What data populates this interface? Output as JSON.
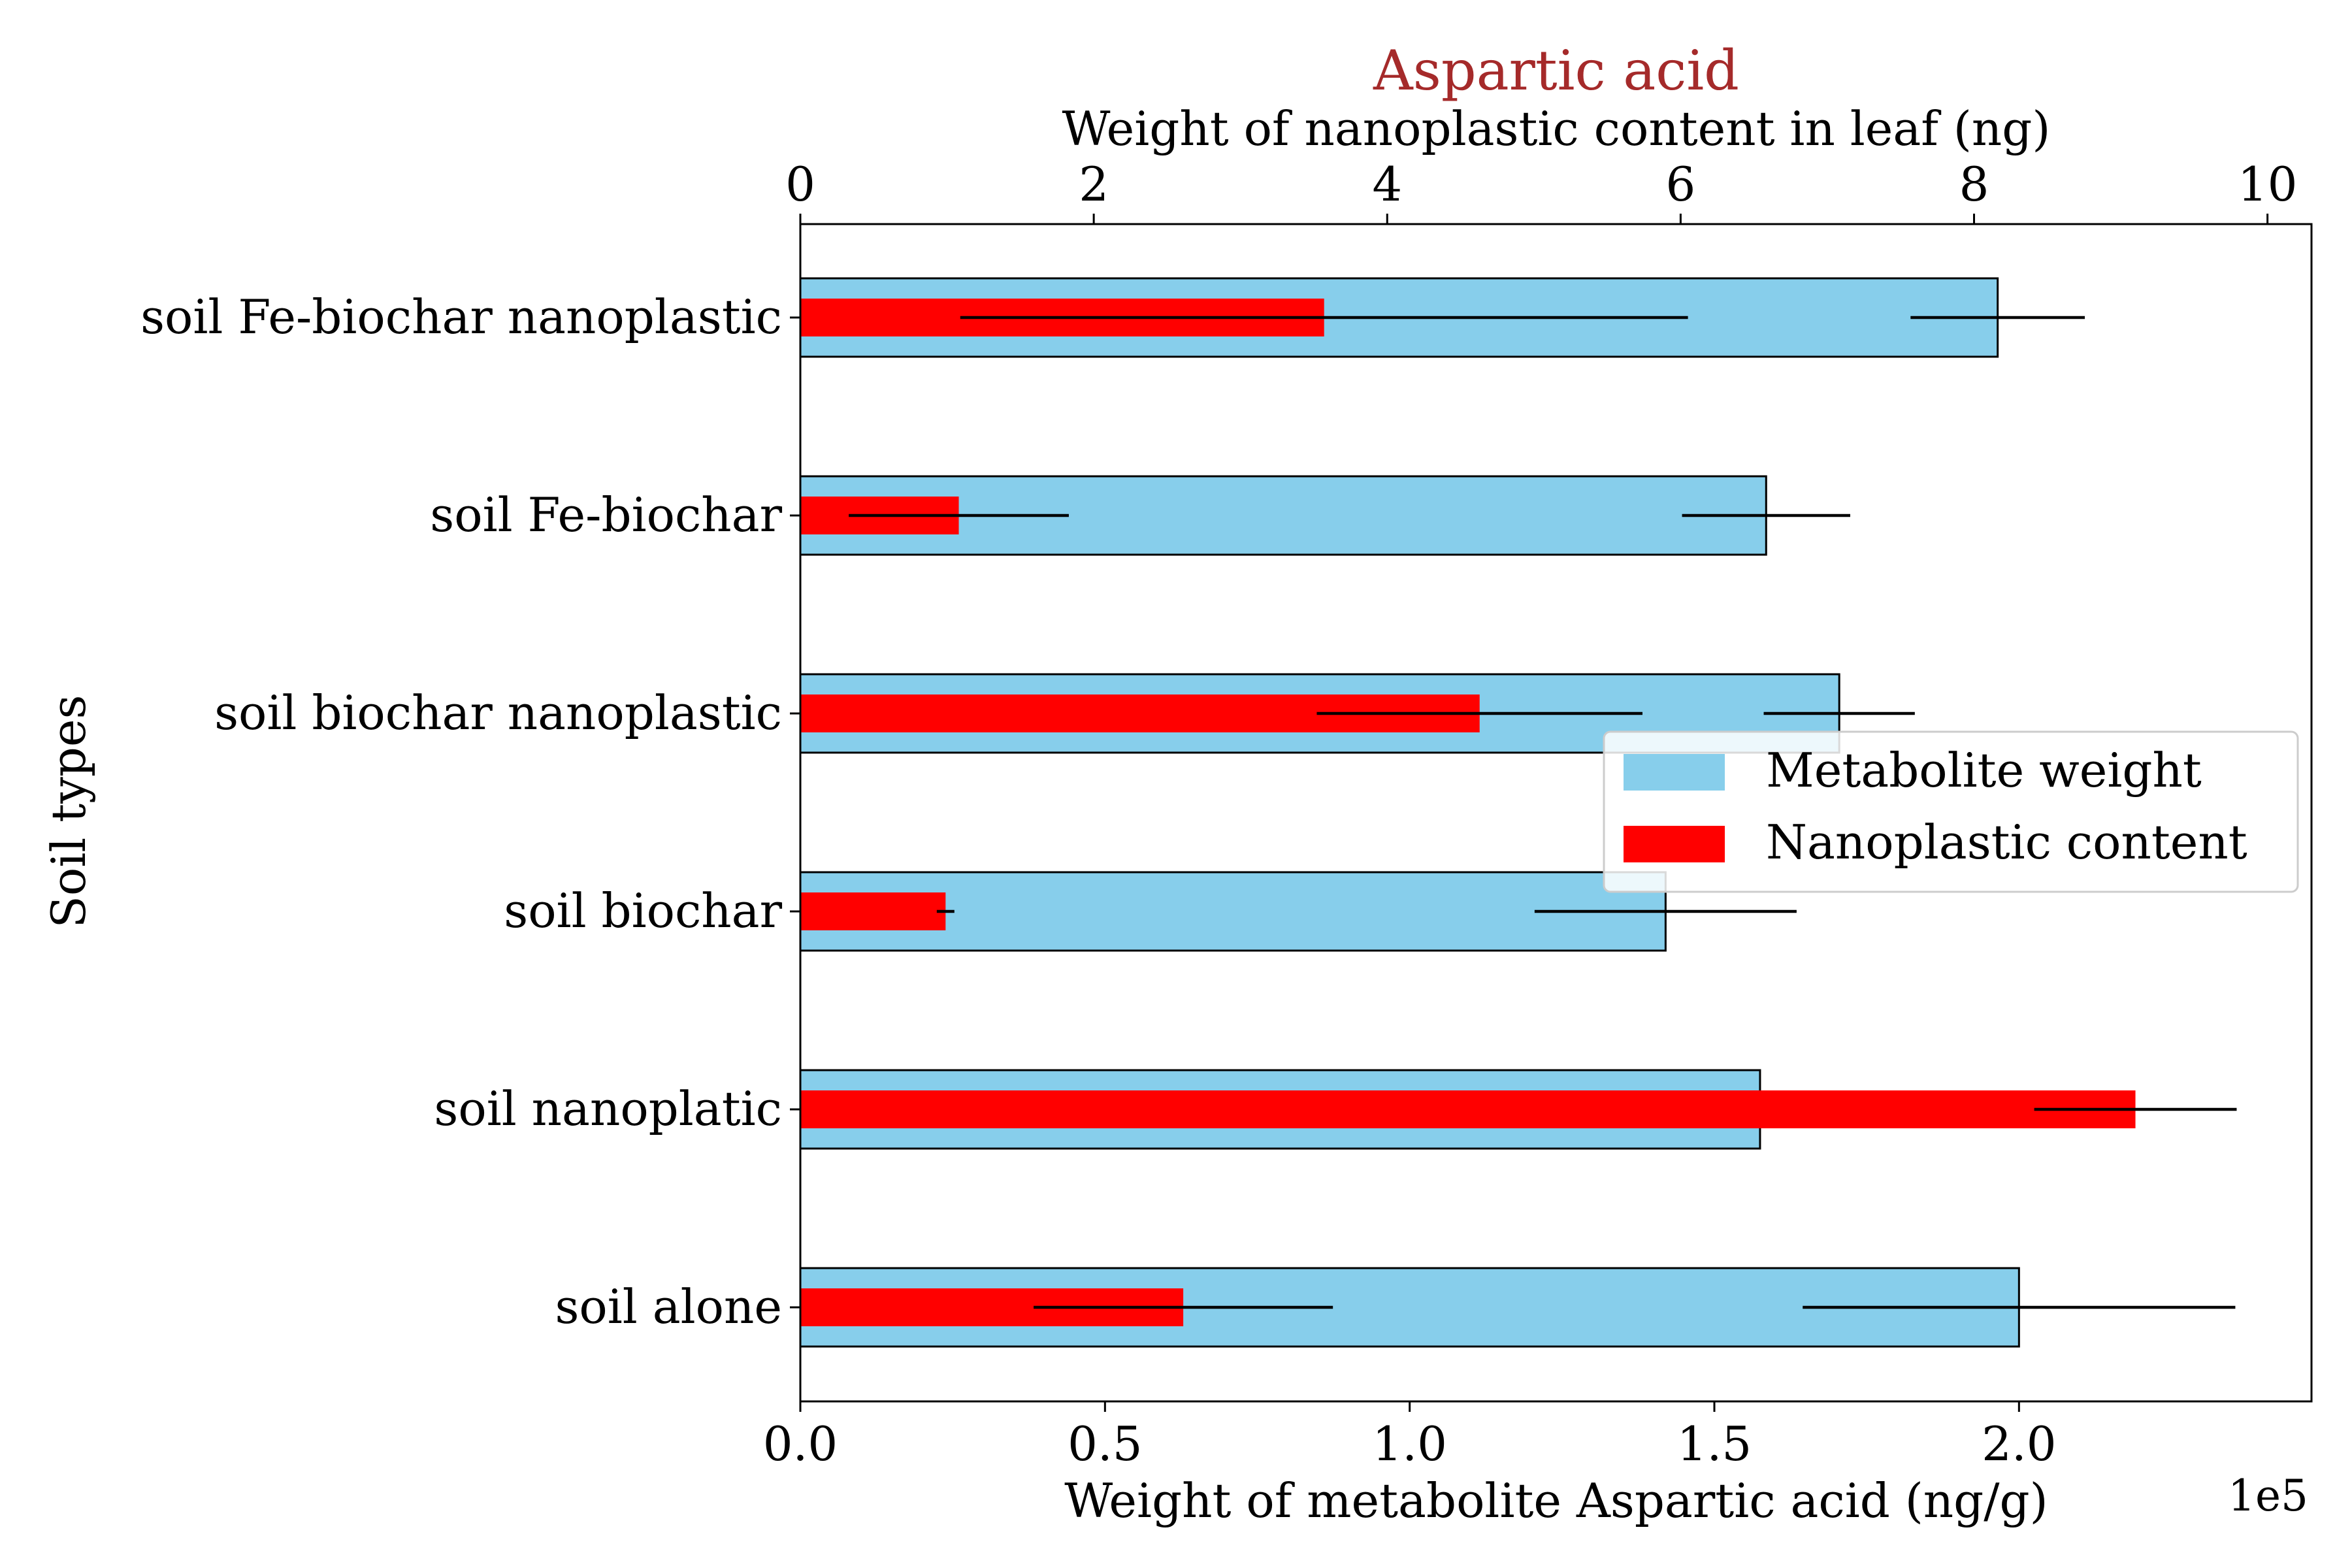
{
  "chart_data": {
    "type": "bar",
    "orientation": "horizontal",
    "title": "Aspartic acid",
    "title_color": "#a52a2a",
    "ylabel": "Soil types",
    "categories": [
      "soil Fe-biochar nanoplastic",
      "soil Fe-biochar",
      "soil biochar nanoplastic",
      "soil biochar",
      "soil nanoplatic",
      "soil alone"
    ],
    "bottom_axis": {
      "label": "Weight of metabolite Aspartic acid (ng/g)",
      "range": [
        0,
        2.48
      ],
      "ticks": [
        0.0,
        0.5,
        1.0,
        1.5,
        2.0
      ],
      "tick_labels": [
        "0.0",
        "0.5",
        "1.0",
        "1.5",
        "2.0"
      ],
      "offset_label": "1e5"
    },
    "top_axis": {
      "label": "Weight of nanoplastic content in leaf (ng)",
      "range": [
        0,
        10.3
      ],
      "ticks": [
        0,
        2,
        4,
        6,
        8,
        10
      ],
      "tick_labels": [
        "0",
        "2",
        "4",
        "6",
        "8",
        "10"
      ]
    },
    "series": [
      {
        "name": "Metabolite weight",
        "axis": "bottom",
        "color": "#87ceeb",
        "edge_color": "#000000",
        "values": [
          1.965,
          1.585,
          1.705,
          1.42,
          1.575,
          2.0
        ],
        "errors": [
          0.143,
          0.138,
          0.124,
          0.215,
          0.0,
          0.355
        ]
      },
      {
        "name": "Nanoplastic content",
        "axis": "top",
        "color": "#ff0000",
        "values": [
          3.57,
          1.08,
          4.63,
          0.99,
          9.1,
          2.61
        ],
        "errors": [
          2.48,
          0.75,
          1.11,
          0.06,
          0.69,
          1.02
        ]
      }
    ],
    "legend": {
      "position": "center-right",
      "entries": [
        "Metabolite weight",
        "Nanoplastic content"
      ]
    }
  }
}
